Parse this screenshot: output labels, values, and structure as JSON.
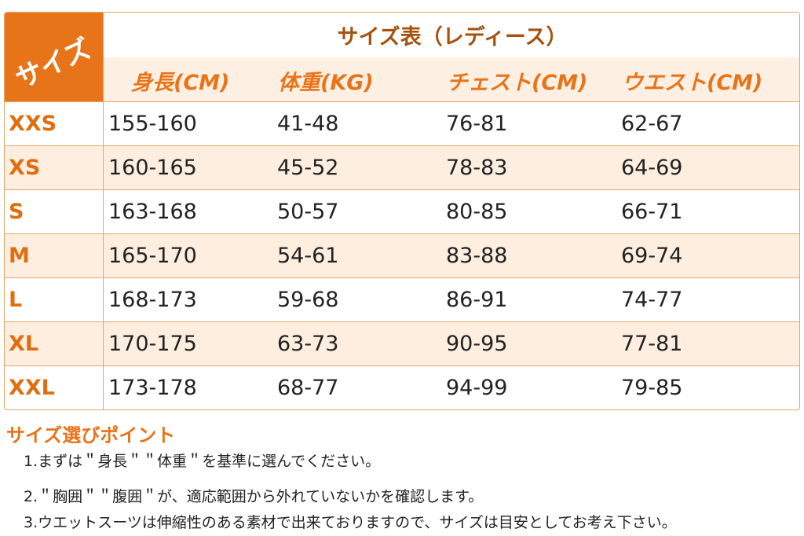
{
  "table": {
    "corner": "サイズ",
    "title": "サイズ表（レディース）",
    "headers": [
      "身長(CM)",
      "体重(KG)",
      "チェスト(CM)",
      "ウエスト(CM)"
    ],
    "rows": [
      [
        "XXS",
        "155-160",
        "41-48",
        "76-81",
        "62-67"
      ],
      [
        "XS",
        "160-165",
        "45-52",
        "78-83",
        "64-69"
      ],
      [
        "S",
        "163-168",
        "50-57",
        "80-85",
        "66-71"
      ],
      [
        "M",
        "165-170",
        "54-61",
        "83-88",
        "69-74"
      ],
      [
        "L",
        "168-173",
        "59-68",
        "86-91",
        "74-77"
      ],
      [
        "XL",
        "170-175",
        "63-73",
        "90-95",
        "77-81"
      ],
      [
        "XXL",
        "173-178",
        "68-77",
        "94-99",
        "79-85"
      ]
    ]
  },
  "notes": {
    "title": "サイズ選びポイント",
    "items": [
      "1.まずは＂身長＂＂体重＂を基準に選んでください。",
      "2.＂胸囲＂＂腹囲＂が、適応範囲から外れていないかを確認します。",
      "3.ウエットスーツは伸縮性のある素材で出来ておりますので、サイズは目安としてお考え下さい。"
    ]
  }
}
